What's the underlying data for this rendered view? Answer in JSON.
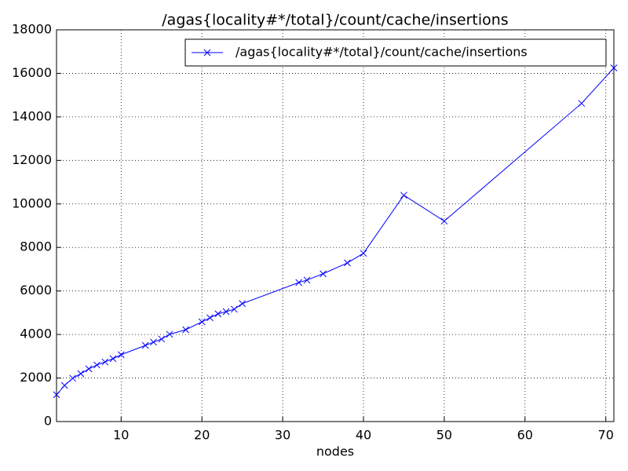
{
  "chart_data": {
    "type": "line",
    "title": "/agas{locality#*/total}/count/cache/insertions",
    "x_label": "nodes",
    "x": [
      2,
      3,
      4,
      5,
      6,
      7,
      8,
      9,
      10,
      13,
      14,
      15,
      16,
      18,
      20,
      21,
      22,
      23,
      24,
      25,
      32,
      33,
      35,
      38,
      40,
      45,
      50,
      67,
      71
    ],
    "series": [
      {
        "name": "/agas{locality#*/total}/count/cache/insertions",
        "color": "#0000ff",
        "values": [
          1230,
          1660,
          1990,
          2200,
          2420,
          2600,
          2740,
          2890,
          3070,
          3500,
          3650,
          3790,
          4010,
          4220,
          4580,
          4770,
          4950,
          5050,
          5160,
          5420,
          6390,
          6500,
          6790,
          7290,
          7730,
          10400,
          9210,
          14620,
          16250
        ]
      }
    ],
    "xlim": [
      2,
      71
    ],
    "xticks": [
      10,
      20,
      30,
      40,
      50,
      60,
      70
    ],
    "ylim": [
      0,
      18000
    ],
    "yticks": [
      0,
      2000,
      4000,
      6000,
      8000,
      10000,
      12000,
      14000,
      16000,
      18000
    ],
    "grid": true,
    "legend": "upper right",
    "marker": "x"
  }
}
